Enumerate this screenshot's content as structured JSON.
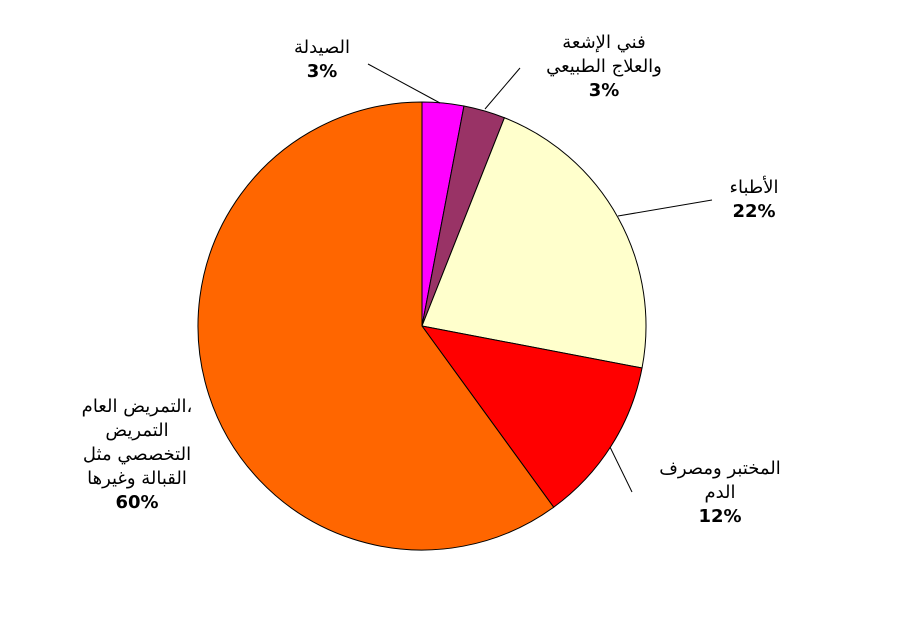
{
  "chart_data": {
    "type": "pie",
    "title": "",
    "start_angle_deg": 0,
    "direction": "clockwise",
    "slices": [
      {
        "label_lines": [
          "الصيدلة"
        ],
        "value": 3,
        "value_label": "3%",
        "color": "#FF00FF"
      },
      {
        "label_lines": [
          "فني الإشعة",
          "والعلاج الطبيعي"
        ],
        "value": 3,
        "value_label": "3%",
        "color": "#993366"
      },
      {
        "label_lines": [
          "الأطباء"
        ],
        "value": 22,
        "value_label": "22%",
        "color": "#FFFFCC"
      },
      {
        "label_lines": [
          "المختبر ومصرف",
          "الدم"
        ],
        "value": 12,
        "value_label": "12%",
        "color": "#FF0000"
      },
      {
        "label_lines": [
          "التمريض العام،",
          "التمريض",
          "التخصصي مثل",
          "القبالة وغيرها"
        ],
        "value": 60,
        "value_label": "60%",
        "color": "#FF6600"
      }
    ],
    "legend": "none",
    "outline_color": "#000000"
  }
}
